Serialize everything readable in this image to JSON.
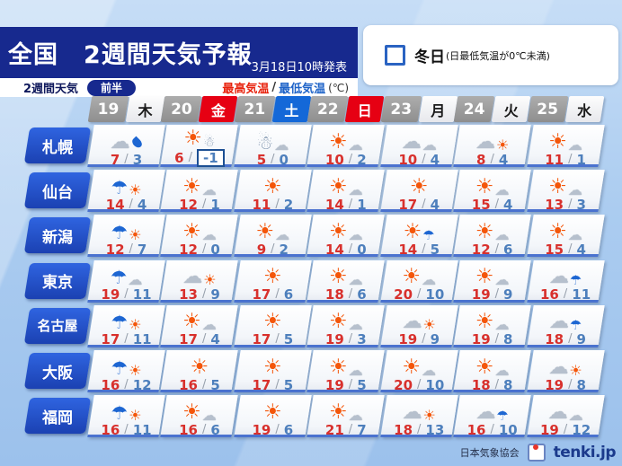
{
  "header": {
    "title": "全国　2週間天気予報",
    "issued": "3月18日10時発表"
  },
  "subheader": {
    "label": "2週間天気",
    "phase": "前半",
    "high_label": "最高気温",
    "slash": "/",
    "low_label": "最低気温",
    "unit": "(℃)"
  },
  "legend": {
    "term": "冬日",
    "description": "(日最低気温が0℃未満)"
  },
  "table": {
    "columns": [
      {
        "date": "19",
        "day": "木",
        "type": "weekday"
      },
      {
        "date": "20",
        "day": "金",
        "type": "holiday"
      },
      {
        "date": "21",
        "day": "土",
        "type": "saturday"
      },
      {
        "date": "22",
        "day": "日",
        "type": "holiday"
      },
      {
        "date": "23",
        "day": "月",
        "type": "weekday"
      },
      {
        "date": "24",
        "day": "火",
        "type": "weekday"
      },
      {
        "date": "25",
        "day": "水",
        "type": "weekday"
      }
    ],
    "rows": [
      {
        "city": "札幌",
        "cells": [
          {
            "icon": "cloud-and-rain",
            "high": 7,
            "low": 3
          },
          {
            "icon": "sun-then-snow",
            "high": 6,
            "low": -1,
            "winter_day": true
          },
          {
            "icon": "snow-then-cloud",
            "high": 5,
            "low": 0
          },
          {
            "icon": "sun-then-cloud",
            "high": 10,
            "low": 2
          },
          {
            "icon": "cloudy",
            "high": 10,
            "low": 4
          },
          {
            "icon": "cloud-then-sun",
            "high": 8,
            "low": 4
          },
          {
            "icon": "sun-then-cloud",
            "high": 11,
            "low": 1
          }
        ]
      },
      {
        "city": "仙台",
        "cells": [
          {
            "icon": "rain-then-sun",
            "high": 14,
            "low": 4
          },
          {
            "icon": "sun-then-cloud",
            "high": 12,
            "low": 1
          },
          {
            "icon": "sunny",
            "high": 11,
            "low": 2
          },
          {
            "icon": "sun-then-cloud",
            "high": 14,
            "low": 1
          },
          {
            "icon": "sunny",
            "high": 17,
            "low": 4
          },
          {
            "icon": "sun-then-cloud",
            "high": 15,
            "low": 4
          },
          {
            "icon": "sun-then-cloud",
            "high": 13,
            "low": 3
          }
        ]
      },
      {
        "city": "新潟",
        "cells": [
          {
            "icon": "rain-then-sun",
            "high": 12,
            "low": 7
          },
          {
            "icon": "sun-then-cloud",
            "high": 12,
            "low": 0
          },
          {
            "icon": "sun-then-cloud",
            "high": 9,
            "low": 2
          },
          {
            "icon": "sun-then-cloud",
            "high": 14,
            "low": 0
          },
          {
            "icon": "sun-then-rain",
            "high": 14,
            "low": 5
          },
          {
            "icon": "sun-then-cloud",
            "high": 12,
            "low": 6
          },
          {
            "icon": "sun-then-cloud",
            "high": 15,
            "low": 4
          }
        ]
      },
      {
        "city": "東京",
        "cells": [
          {
            "icon": "rain-then-cloud",
            "high": 19,
            "low": 11
          },
          {
            "icon": "cloud-then-sun",
            "high": 13,
            "low": 9
          },
          {
            "icon": "sunny",
            "high": 17,
            "low": 6
          },
          {
            "icon": "sun-then-cloud",
            "high": 18,
            "low": 6
          },
          {
            "icon": "sun-then-cloud",
            "high": 20,
            "low": 10
          },
          {
            "icon": "sun-then-cloud",
            "high": 19,
            "low": 9
          },
          {
            "icon": "cloud-then-rain",
            "high": 16,
            "low": 11
          }
        ]
      },
      {
        "city": "名古屋",
        "cells": [
          {
            "icon": "rain-then-sun",
            "high": 17,
            "low": 11
          },
          {
            "icon": "sun-then-cloud",
            "high": 17,
            "low": 4
          },
          {
            "icon": "sunny",
            "high": 17,
            "low": 5
          },
          {
            "icon": "sun-then-cloud",
            "high": 19,
            "low": 3
          },
          {
            "icon": "cloud-then-sun",
            "high": 19,
            "low": 9
          },
          {
            "icon": "sun-then-cloud",
            "high": 19,
            "low": 8
          },
          {
            "icon": "cloud-then-rain",
            "high": 18,
            "low": 9
          }
        ]
      },
      {
        "city": "大阪",
        "cells": [
          {
            "icon": "rain-then-sun",
            "high": 16,
            "low": 12
          },
          {
            "icon": "sunny",
            "high": 16,
            "low": 5
          },
          {
            "icon": "sunny",
            "high": 17,
            "low": 5
          },
          {
            "icon": "sun-then-cloud",
            "high": 19,
            "low": 5
          },
          {
            "icon": "sun-then-cloud",
            "high": 20,
            "low": 10
          },
          {
            "icon": "sun-then-cloud",
            "high": 18,
            "low": 8
          },
          {
            "icon": "cloud-then-sun",
            "high": 19,
            "low": 8
          }
        ]
      },
      {
        "city": "福岡",
        "cells": [
          {
            "icon": "rain-then-sun",
            "high": 16,
            "low": 11
          },
          {
            "icon": "sun-then-cloud",
            "high": 16,
            "low": 6
          },
          {
            "icon": "sunny",
            "high": 19,
            "low": 6
          },
          {
            "icon": "sun-then-cloud",
            "high": 21,
            "low": 7
          },
          {
            "icon": "cloud-then-sun",
            "high": 18,
            "low": 13
          },
          {
            "icon": "cloud-then-rain",
            "high": 16,
            "low": 10
          },
          {
            "icon": "cloudy",
            "high": 19,
            "low": 12
          }
        ]
      }
    ]
  },
  "footer": {
    "org": "日本気象協会",
    "brand": "tenki.jp"
  },
  "colors": {
    "banner_navy": "#17298e",
    "holiday_red": "#e60013",
    "saturday_blue": "#1468d8",
    "high_temp_red": "#d8302c",
    "low_temp_blue": "#4d7fbc",
    "winter_box_border": "#1c4f93"
  }
}
